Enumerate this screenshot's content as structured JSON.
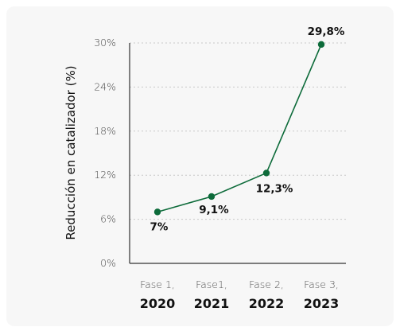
{
  "chart_data": {
    "type": "line",
    "categories": [
      {
        "line1": "Fase 1,",
        "line2": "2020"
      },
      {
        "line1": "Fase1,",
        "line2": "2021"
      },
      {
        "line1": "Fase 2,",
        "line2": "2022"
      },
      {
        "line1": "Fase 3,",
        "line2": "2023"
      }
    ],
    "values": [
      7,
      9.1,
      12.3,
      29.8
    ],
    "data_labels": [
      "7%",
      "9,1%",
      "12,3%",
      "29,8%"
    ],
    "ylabel": "Reducción en catalizador (%)",
    "yticks": [
      0,
      6,
      12,
      18,
      24,
      30
    ],
    "ytick_labels": [
      "0%",
      "6%",
      "12%",
      "18%",
      "24%",
      "30%"
    ],
    "ylim": [
      0,
      30
    ],
    "grid": true,
    "colors": {
      "line": "#0d6b3a",
      "grid": "#c8c8c8",
      "axis": "#333333"
    }
  }
}
